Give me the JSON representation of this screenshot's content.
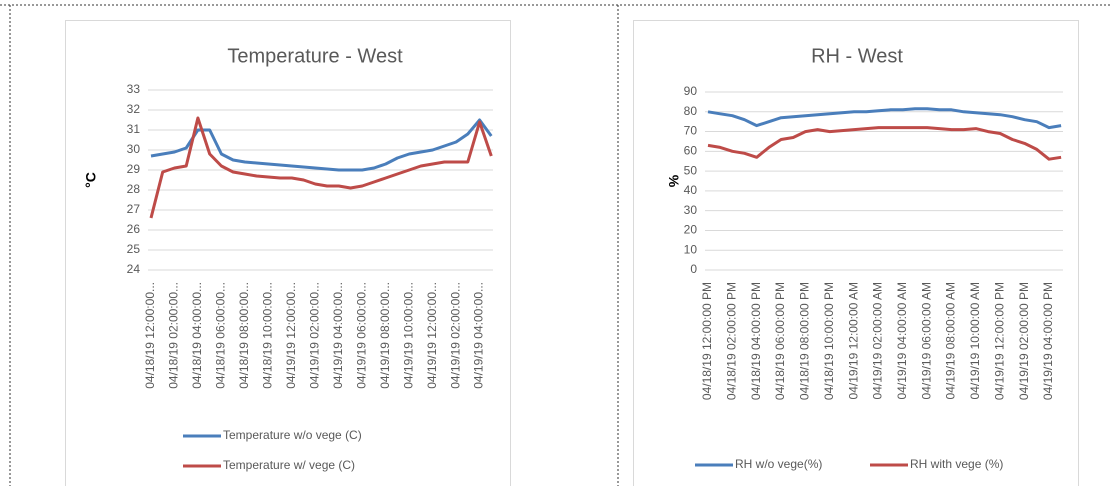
{
  "chart_data": [
    {
      "type": "line",
      "title": "Temperature  - West",
      "y_label": "°C",
      "categories": [
        "04/18/19 12:00:00...",
        null,
        "04/18/19 02:00:00...",
        null,
        "04/18/19 04:00:00...",
        null,
        "04/18/19 06:00:00...",
        null,
        "04/18/19 08:00:00...",
        null,
        "04/18/19 10:00:00...",
        null,
        "04/19/19 12:00:00...",
        null,
        "04/19/19 02:00:00...",
        null,
        "04/19/19 04:00:00...",
        null,
        "04/19/19 06:00:00...",
        null,
        "04/19/19 08:00:00...",
        null,
        "04/19/19 10:00:00...",
        null,
        "04/19/19 12:00:00...",
        null,
        "04/19/19 02:00:00...",
        null,
        "04/19/19 04:00:00...",
        null
      ],
      "series": [
        {
          "name": "Temperature w/o vege (C)",
          "color": "#4a7ebb",
          "values": [
            29.7,
            29.8,
            29.9,
            30.1,
            31.0,
            31.0,
            29.8,
            29.5,
            29.4,
            29.35,
            29.3,
            29.25,
            29.2,
            29.15,
            29.1,
            29.05,
            29.0,
            29.0,
            29.0,
            29.1,
            29.3,
            29.6,
            29.8,
            29.9,
            30.0,
            30.2,
            30.4,
            30.8,
            31.5,
            30.7
          ]
        },
        {
          "name": "Temperature w/ vege (C)",
          "color": "#be4b48",
          "values": [
            26.6,
            28.9,
            29.1,
            29.2,
            31.6,
            29.8,
            29.2,
            28.9,
            28.8,
            28.7,
            28.65,
            28.6,
            28.6,
            28.5,
            28.3,
            28.2,
            28.2,
            28.1,
            28.2,
            28.4,
            28.6,
            28.8,
            29.0,
            29.2,
            29.3,
            29.4,
            29.4,
            29.4,
            31.4,
            29.7
          ]
        }
      ],
      "ylim": [
        24,
        33
      ],
      "yticks": [
        24,
        25,
        26,
        27,
        28,
        29,
        30,
        31,
        32,
        33
      ],
      "grid": true,
      "legend": "bottom"
    },
    {
      "type": "line",
      "title": "RH - West",
      "y_label": "%",
      "categories": [
        "04/18/19 12:00:00 PM",
        null,
        "04/18/19 02:00:00 PM",
        null,
        "04/18/19 04:00:00 PM",
        null,
        "04/18/19 06:00:00 PM",
        null,
        "04/18/19 08:00:00 PM",
        null,
        "04/18/19 10:00:00 PM",
        null,
        "04/19/19 12:00:00 AM",
        null,
        "04/19/19 02:00:00 AM",
        null,
        "04/19/19 04:00:00 AM",
        null,
        "04/19/19 06:00:00 AM",
        null,
        "04/19/19 08:00:00 AM",
        null,
        "04/19/19 10:00:00 AM",
        null,
        "04/19/19 12:00:00 PM",
        null,
        "04/19/19 02:00:00 PM",
        null,
        "04/19/19 04:00:00 PM",
        null
      ],
      "series": [
        {
          "name": "RH w/o vege(%)",
          "color": "#4a7ebb",
          "values": [
            80,
            79,
            78,
            76,
            73,
            75,
            77,
            77.5,
            78,
            78.5,
            79,
            79.5,
            80,
            80,
            80.5,
            81,
            81,
            81.5,
            81.5,
            81,
            81,
            80,
            79.5,
            79,
            78.5,
            77.5,
            76,
            75,
            72,
            73
          ]
        },
        {
          "name": "RH with vege (%)",
          "color": "#be4b48",
          "values": [
            63,
            62,
            60,
            59,
            57,
            62,
            66,
            67,
            70,
            71,
            70,
            70.5,
            71,
            71.5,
            72,
            72,
            72,
            72,
            72,
            71.5,
            71,
            71,
            71.5,
            70,
            69,
            66,
            64,
            61,
            56,
            57
          ]
        }
      ],
      "ylim": [
        0,
        90
      ],
      "yticks": [
        0,
        10,
        20,
        30,
        40,
        50,
        60,
        70,
        80,
        90
      ],
      "grid": true,
      "legend": "bottom"
    }
  ]
}
